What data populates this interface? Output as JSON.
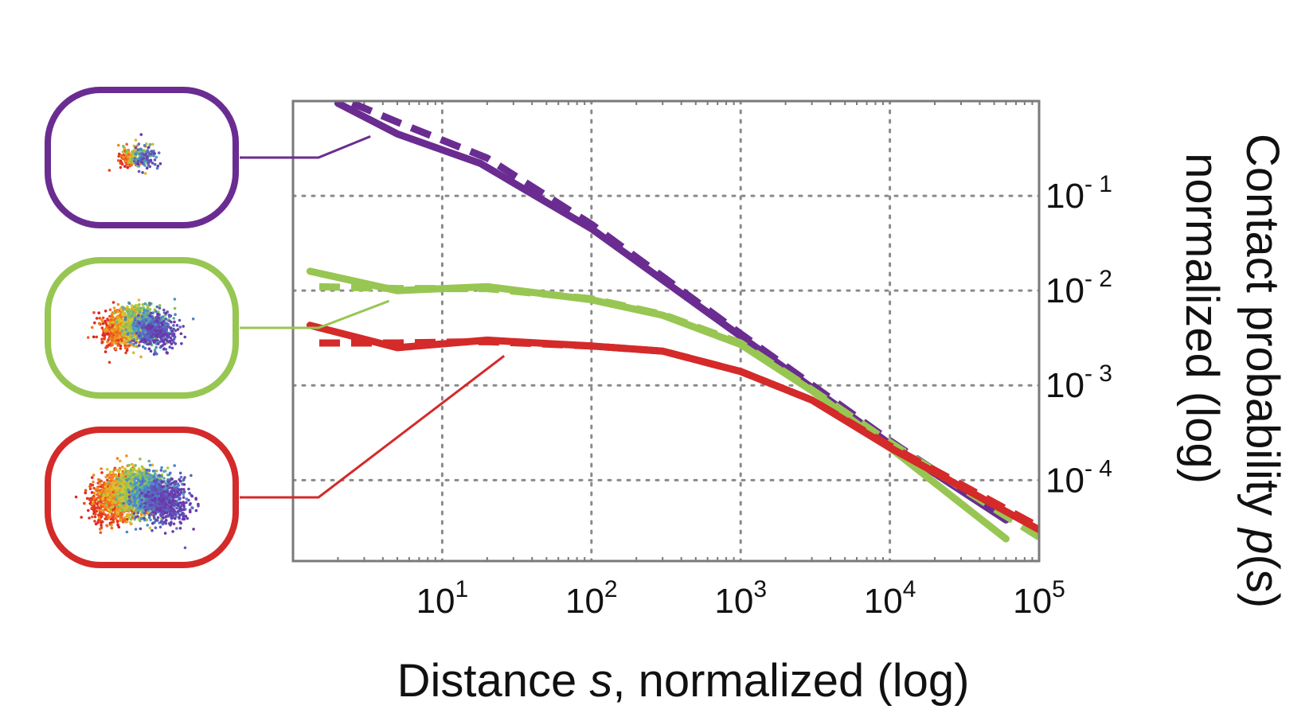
{
  "chart_data": {
    "type": "line",
    "xlabel": {
      "before": "Distance ",
      "var": "s",
      "after": ", normalized (log)"
    },
    "ylabel": {
      "line1_before": "Contact probability ",
      "line1_var": "p",
      "line1_after": "(s)",
      "line2": "normalized (log)"
    },
    "x_scale": "log",
    "y_scale": "log",
    "xlim": [
      1,
      100000
    ],
    "ylim": [
      1.4e-05,
      1.0
    ],
    "x_ticks": [
      {
        "value": 10,
        "base": "10",
        "exp": "1"
      },
      {
        "value": 100,
        "base": "10",
        "exp": "2"
      },
      {
        "value": 1000,
        "base": "10",
        "exp": "3"
      },
      {
        "value": 10000,
        "base": "10",
        "exp": "4"
      },
      {
        "value": 100000,
        "base": "10",
        "exp": "5"
      }
    ],
    "y_ticks": [
      {
        "value": 0.1,
        "base": "10",
        "exp": "- 1"
      },
      {
        "value": 0.01,
        "base": "10",
        "exp": "- 2"
      },
      {
        "value": 0.001,
        "base": "10",
        "exp": "- 3"
      },
      {
        "value": 0.0001,
        "base": "10",
        "exp": "- 4"
      }
    ],
    "grid": true,
    "legend": "left (structure snapshots)",
    "series": [
      {
        "color": "#6a2c91",
        "style": "solid",
        "x": [
          2,
          5,
          18,
          100,
          1000,
          10000,
          60000
        ],
        "y": [
          0.95,
          0.45,
          0.22,
          0.045,
          0.0033,
          0.00024,
          3.8e-05
        ]
      },
      {
        "color": "#6a2c91",
        "style": "dashed",
        "x": [
          2.5,
          5,
          20,
          100,
          1000,
          10000,
          60000
        ],
        "y": [
          0.95,
          0.6,
          0.25,
          0.05,
          0.0035,
          0.00026,
          4e-05
        ]
      },
      {
        "color": "#98c653",
        "style": "solid",
        "x": [
          1.3,
          5,
          20,
          100,
          300,
          1000,
          3000,
          10000,
          60000
        ],
        "y": [
          0.016,
          0.01,
          0.011,
          0.008,
          0.0055,
          0.0027,
          0.00088,
          0.00022,
          2.4e-05
        ]
      },
      {
        "color": "#98c653",
        "style": "dashed",
        "x": [
          1.5,
          5,
          20,
          100,
          300,
          1000,
          3000,
          10000,
          100000
        ],
        "y": [
          0.011,
          0.0105,
          0.0105,
          0.0082,
          0.0056,
          0.0028,
          0.0009,
          0.00025,
          2.5e-05
        ]
      },
      {
        "color": "#d42a2a",
        "style": "solid",
        "x": [
          1.3,
          5,
          20,
          100,
          300,
          1000,
          3000,
          10000,
          100000
        ],
        "y": [
          0.0043,
          0.0025,
          0.003,
          0.0026,
          0.0023,
          0.0014,
          0.0007,
          0.00022,
          3e-05
        ]
      },
      {
        "color": "#d42a2a",
        "style": "dashed",
        "x": [
          1.5,
          5,
          20,
          100,
          300,
          1000,
          3000,
          10000,
          100000
        ],
        "y": [
          0.0028,
          0.0028,
          0.0029,
          0.0026,
          0.0023,
          0.0014,
          0.0007,
          0.00023,
          3.2e-05
        ]
      }
    ],
    "insets": [
      {
        "border_color": "#6a2c91",
        "spread": 0.35,
        "points": 260,
        "target_x": 3.3,
        "target_y": 0.6
      },
      {
        "border_color": "#98c653",
        "spread": 0.75,
        "points": 1500,
        "target_x": 4.4,
        "target_y": 0.011
      },
      {
        "border_color": "#d42a2a",
        "spread": 1.0,
        "points": 2600,
        "target_x": 26,
        "target_y": 0.0029
      }
    ]
  }
}
